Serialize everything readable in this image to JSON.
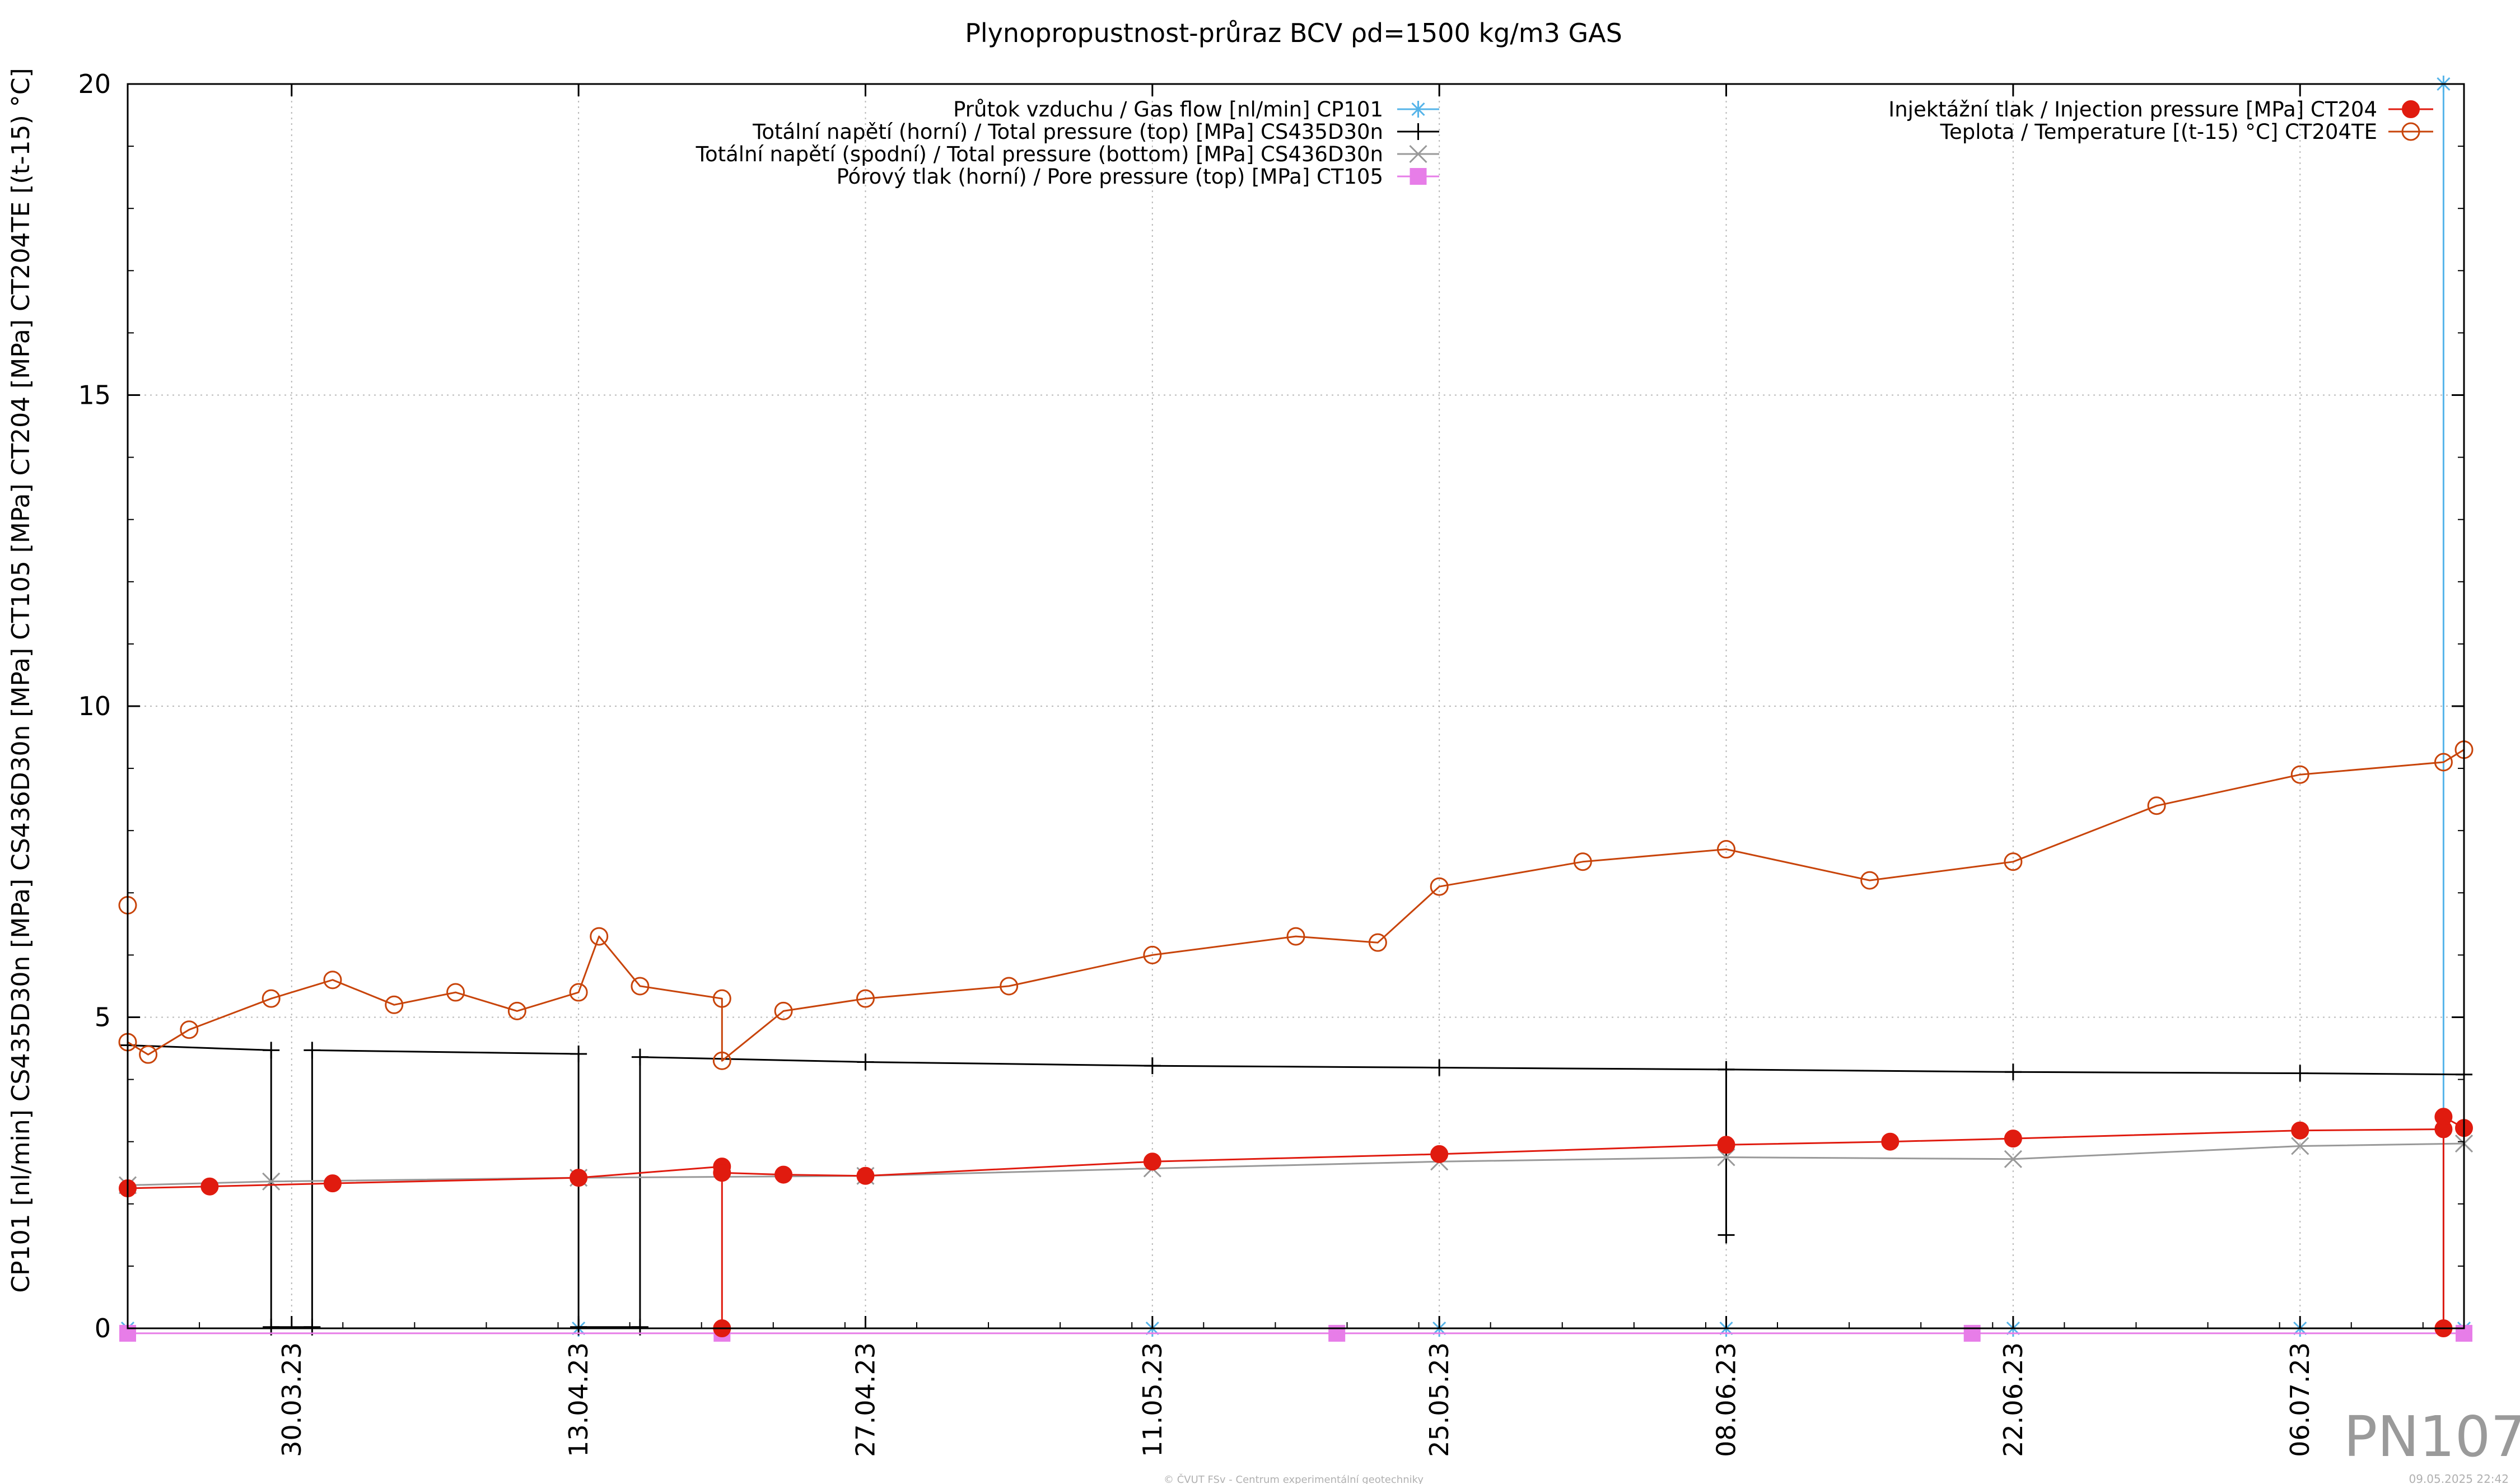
{
  "chart_data": {
    "type": "line",
    "title": "Plynopropustnost-průraz BCV ρd=1500 kg/m3 GAS",
    "ylabel": "CP101 [nl/min] CS435D30n [MPa] CS436D30n [MPa] CT105 [MPa] CT204 [MPa] CT204TE [(t-15) °C]",
    "xlabel": "",
    "ylim": [
      0,
      20
    ],
    "yticks": [
      0,
      5,
      10,
      15,
      20
    ],
    "ytick_labels": [
      "0",
      "5",
      "10",
      "15",
      "20"
    ],
    "xlim": [
      "2023-03-22",
      "2023-07-14"
    ],
    "xticks": [
      "2023-03-30",
      "2023-04-13",
      "2023-04-27",
      "2023-05-11",
      "2023-05-25",
      "2023-06-08",
      "2023-06-22",
      "2023-07-06"
    ],
    "xtick_labels": [
      "30.03.23",
      "13.04.23",
      "27.04.23",
      "11.05.23",
      "25.05.23",
      "08.06.23",
      "22.06.23",
      "06.07.23"
    ],
    "grid": true,
    "legend_left": "top-center",
    "legend_right": "top-right",
    "series": [
      {
        "name": "Průtok vzduchu / Gas flow [nl/min] CP101",
        "color": "#56b4e9",
        "marker": "asterisk",
        "points": [
          [
            "2023-03-22",
            0
          ],
          [
            "2023-04-13",
            0
          ],
          [
            "2023-04-20",
            0
          ],
          [
            "2023-05-11",
            0
          ],
          [
            "2023-05-25",
            0
          ],
          [
            "2023-06-08",
            0
          ],
          [
            "2023-06-22",
            0
          ],
          [
            "2023-07-06",
            0
          ],
          [
            "2023-07-13",
            0
          ],
          [
            "2023-07-13",
            20
          ],
          [
            "2023-07-13",
            0
          ],
          [
            "2023-07-14",
            0
          ]
        ]
      },
      {
        "name": "Totální napětí (horní) / Total pressure (top) [MPa] CS435D30n",
        "color": "#000000",
        "marker": "plus",
        "points": [
          [
            "2023-03-22",
            4.55
          ],
          [
            "2023-03-29",
            4.47
          ],
          [
            "2023-03-29",
            0.02
          ],
          [
            "2023-03-31",
            0.02
          ],
          [
            "2023-03-31",
            4.47
          ],
          [
            "2023-04-13",
            4.41
          ],
          [
            "2023-04-13",
            0.02
          ],
          [
            "2023-04-16",
            0.02
          ],
          [
            "2023-04-16",
            4.36
          ],
          [
            "2023-04-27",
            4.28
          ],
          [
            "2023-05-11",
            4.22
          ],
          [
            "2023-05-25",
            4.19
          ],
          [
            "2023-06-08",
            4.16
          ],
          [
            "2023-06-08",
            1.5
          ],
          [
            "2023-06-08",
            4.16
          ],
          [
            "2023-06-22",
            4.12
          ],
          [
            "2023-07-06",
            4.1
          ],
          [
            "2023-07-14",
            4.08
          ]
        ]
      },
      {
        "name": "Totální napětí (spodní) / Total pressure (bottom) [MPa] CS436D30n",
        "color": "#999999",
        "marker": "cross",
        "points": [
          [
            "2023-03-22",
            2.3
          ],
          [
            "2023-03-29",
            2.36
          ],
          [
            "2023-04-13",
            2.42
          ],
          [
            "2023-04-27",
            2.45
          ],
          [
            "2023-05-11",
            2.57
          ],
          [
            "2023-05-25",
            2.68
          ],
          [
            "2023-06-08",
            2.75
          ],
          [
            "2023-06-22",
            2.72
          ],
          [
            "2023-07-06",
            2.93
          ],
          [
            "2023-07-14",
            2.97
          ]
        ]
      },
      {
        "name": "Pórový tlak (horní) / Pore pressure (top) [MPa] CT105",
        "color": "#e77de8",
        "marker": "square",
        "points": [
          [
            "2023-03-22",
            -0.08
          ],
          [
            "2023-04-20",
            -0.08
          ],
          [
            "2023-05-20",
            -0.08
          ],
          [
            "2023-06-20",
            -0.08
          ],
          [
            "2023-07-14",
            -0.08
          ]
        ]
      },
      {
        "name": "Injektážní tlak / Injection pressure [MPa] CT204",
        "color": "#e01b0f",
        "marker": "circle-filled",
        "points": [
          [
            "2023-03-22",
            2.25
          ],
          [
            "2023-03-26",
            2.28
          ],
          [
            "2023-04-01",
            2.33
          ],
          [
            "2023-04-13",
            2.42
          ],
          [
            "2023-04-20",
            2.6
          ],
          [
            "2023-04-20",
            0
          ],
          [
            "2023-04-20",
            2.5
          ],
          [
            "2023-04-23",
            2.47
          ],
          [
            "2023-04-27",
            2.45
          ],
          [
            "2023-05-11",
            2.68
          ],
          [
            "2023-05-25",
            2.8
          ],
          [
            "2023-06-08",
            2.95
          ],
          [
            "2023-06-16",
            3.0
          ],
          [
            "2023-06-22",
            3.05
          ],
          [
            "2023-07-06",
            3.18
          ],
          [
            "2023-07-13",
            3.2
          ],
          [
            "2023-07-13",
            0
          ],
          [
            "2023-07-13",
            3.4
          ],
          [
            "2023-07-14",
            3.22
          ]
        ]
      },
      {
        "name": "Teplota / Temperature [(t-15) °C] CT204TE",
        "color": "#c8440a",
        "marker": "circle-open",
        "points": [
          [
            "2023-03-22",
            6.8
          ],
          [
            "2023-03-22",
            4.6
          ],
          [
            "2023-03-23",
            4.4
          ],
          [
            "2023-03-25",
            4.8
          ],
          [
            "2023-03-29",
            5.3
          ],
          [
            "2023-04-01",
            5.6
          ],
          [
            "2023-04-04",
            5.2
          ],
          [
            "2023-04-07",
            5.4
          ],
          [
            "2023-04-10",
            5.1
          ],
          [
            "2023-04-13",
            5.4
          ],
          [
            "2023-04-14",
            6.3
          ],
          [
            "2023-04-16",
            5.5
          ],
          [
            "2023-04-20",
            5.3
          ],
          [
            "2023-04-20",
            4.3
          ],
          [
            "2023-04-23",
            5.1
          ],
          [
            "2023-04-27",
            5.3
          ],
          [
            "2023-05-04",
            5.5
          ],
          [
            "2023-05-11",
            6.0
          ],
          [
            "2023-05-18",
            6.3
          ],
          [
            "2023-05-22",
            6.2
          ],
          [
            "2023-05-25",
            7.1
          ],
          [
            "2023-06-01",
            7.5
          ],
          [
            "2023-06-08",
            7.7
          ],
          [
            "2023-06-15",
            7.2
          ],
          [
            "2023-06-22",
            7.5
          ],
          [
            "2023-06-29",
            8.4
          ],
          [
            "2023-07-06",
            8.9
          ],
          [
            "2023-07-13",
            9.1
          ],
          [
            "2023-07-14",
            9.3
          ]
        ]
      }
    ]
  },
  "watermark": "PN107",
  "footer_credit": "© ČVUT FSv - Centrum experimentální geotechniky",
  "footer_timestamp": "09.05.2025 22:42"
}
